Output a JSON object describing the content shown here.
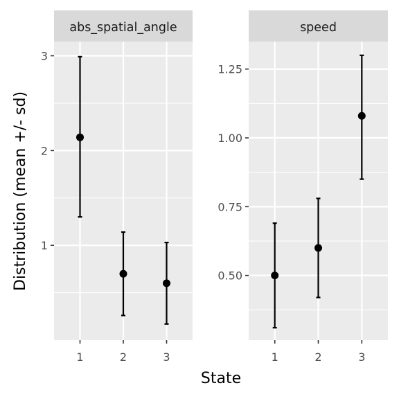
{
  "chart_data": [
    {
      "type": "errorbar",
      "panel": "abs_spatial_angle",
      "categories": [
        "1",
        "2",
        "3"
      ],
      "series": [
        {
          "values": [
            2.14,
            0.7,
            0.6
          ],
          "lower": [
            1.3,
            0.26,
            0.17
          ],
          "upper": [
            2.99,
            1.14,
            1.03
          ]
        }
      ],
      "ylim": [
        0.0,
        3.15
      ],
      "yticks": [
        1,
        2,
        3
      ],
      "ytick_labels": [
        "1",
        "2",
        "3"
      ],
      "grid": true
    },
    {
      "type": "errorbar",
      "panel": "speed",
      "categories": [
        "1",
        "2",
        "3"
      ],
      "series": [
        {
          "values": [
            0.5,
            0.6,
            1.08
          ],
          "lower": [
            0.31,
            0.42,
            0.85
          ],
          "upper": [
            0.69,
            0.78,
            1.3
          ]
        }
      ],
      "ylim": [
        0.265,
        1.35
      ],
      "yticks": [
        0.5,
        0.75,
        1.0,
        1.25
      ],
      "ytick_labels": [
        "0.50",
        "0.75",
        "1.00",
        "1.25"
      ],
      "grid": true
    }
  ],
  "xlabel": "State",
  "ylabel": "Distribution (mean +/- sd)",
  "colors": {
    "panel_background": "#ebebeb",
    "strip_background": "#d9d9d9",
    "grid": "#ffffff",
    "marks": "#000000"
  }
}
